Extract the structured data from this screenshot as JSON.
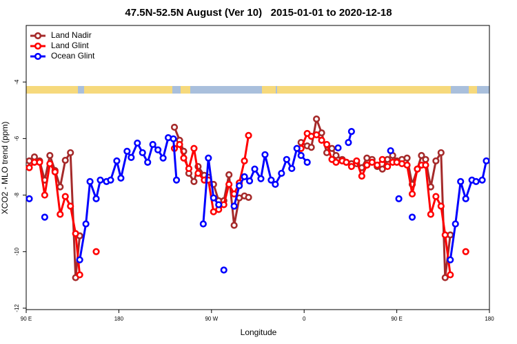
{
  "chart_data": {
    "type": "line",
    "title": "47.5N-52.5N August (Ver 10)   2015-01-01 to 2020-12-18",
    "x_label": "Longitude",
    "y_label": "XCO2 - MLO trend (ppm)",
    "xlim": [
      90,
      540
    ],
    "xticks": [
      {
        "value": 90,
        "label": "90 E"
      },
      180,
      {
        "value": 270,
        "label": "90 W"
      },
      {
        "value": 360,
        "label": "0"
      },
      {
        "value": 450,
        "label": "90 E"
      },
      {
        "value": 540,
        "label": "180"
      }
    ],
    "ylim": [
      -12.05,
      -2
    ],
    "yticks": [
      -12,
      -10,
      -8,
      -6,
      -4
    ],
    "legend": "top-left",
    "series": [
      {
        "name": "Land Nadir",
        "color": "#a52a2a",
        "x": [
          93,
          98,
          103,
          108,
          113,
          118,
          123,
          128,
          133,
          138,
          142,
          null,
          234,
          239,
          243,
          248,
          253,
          257,
          263,
          267,
          272,
          277,
          282,
          287,
          292,
          297,
          302,
          306,
          null,
          357,
          363,
          367,
          372,
          377,
          382,
          387,
          391,
          397,
          401,
          406,
          411,
          416,
          421,
          426,
          431,
          436,
          441,
          446,
          450,
          455,
          460,
          465,
          470,
          474,
          478,
          483,
          488,
          493,
          497,
          502
        ],
        "values": [
          -6.79,
          -6.65,
          -6.79,
          -7.47,
          -6.6,
          -7.13,
          -7.71,
          -6.77,
          -6.5,
          -10.92,
          -9.44,
          null,
          -5.6,
          -6.06,
          -6.45,
          -7.23,
          -7.52,
          -6.99,
          -7.3,
          -7.37,
          -7.62,
          -8.2,
          -8.2,
          -7.28,
          -9.07,
          -8.1,
          -8.03,
          -8.08,
          null,
          -6.14,
          -6.26,
          -6.31,
          -5.31,
          -5.8,
          -6.5,
          -6.35,
          -6.6,
          -6.74,
          -6.84,
          -6.89,
          -6.89,
          -7.03,
          -6.69,
          -6.74,
          -6.99,
          -7.08,
          -6.74,
          -6.6,
          -6.79,
          -6.74,
          -6.69,
          -7.62,
          -7.08,
          -6.6,
          -6.74,
          -7.71,
          -6.79,
          -6.5,
          -10.92,
          -9.41
        ]
      },
      {
        "name": "Land Glint",
        "color": "#ff0000",
        "x": [
          93,
          98,
          103,
          108,
          113,
          118,
          123,
          128,
          133,
          138,
          142,
          null,
          158,
          null,
          234,
          239,
          243,
          248,
          253,
          257,
          263,
          267,
          272,
          277,
          282,
          287,
          292,
          297,
          302,
          306,
          null,
          357,
          363,
          367,
          372,
          377,
          382,
          387,
          391,
          397,
          401,
          406,
          411,
          416,
          421,
          426,
          431,
          436,
          441,
          446,
          450,
          455,
          460,
          465,
          470,
          474,
          478,
          483,
          488,
          493,
          497,
          502,
          null,
          517
        ],
        "values": [
          -7.03,
          -6.84,
          -6.84,
          -8.0,
          -6.89,
          -7.18,
          -8.68,
          -8.05,
          -8.39,
          -9.36,
          -10.82,
          null,
          -10.0,
          null,
          -6.35,
          -6.21,
          -6.69,
          -7.06,
          -6.35,
          -7.23,
          -7.47,
          -7.47,
          -8.59,
          -8.51,
          -8.34,
          -7.62,
          -7.96,
          -7.57,
          -6.79,
          -5.89,
          null,
          -6.35,
          -5.82,
          -5.92,
          -5.87,
          -6.06,
          -6.21,
          -6.74,
          -6.84,
          -6.79,
          -6.84,
          -6.99,
          -6.79,
          -7.33,
          -6.94,
          -6.84,
          -6.94,
          -6.74,
          -6.99,
          -6.84,
          -6.84,
          -6.89,
          -6.94,
          -7.96,
          -7.08,
          -6.94,
          -6.94,
          -8.68,
          -8.05,
          -8.39,
          -9.41,
          -10.82,
          null,
          -10.0
        ]
      },
      {
        "name": "Ocean Glint",
        "color": "#0000ff",
        "x": [
          93,
          null,
          108,
          null,
          142,
          148,
          152,
          158,
          162,
          168,
          172,
          178,
          182,
          188,
          192,
          198,
          203,
          208,
          213,
          218,
          223,
          228,
          233,
          236,
          null,
          262,
          267,
          272,
          277,
          null,
          282,
          null,
          292,
          297,
          302,
          307,
          312,
          318,
          322,
          328,
          332,
          338,
          343,
          348,
          353,
          357,
          363,
          null,
          393,
          null,
          403,
          406,
          null,
          444,
          null,
          452,
          null,
          465,
          null,
          502,
          507,
          512,
          517,
          523,
          527,
          533,
          537
        ],
        "values": [
          -8.13,
          null,
          -8.78,
          null,
          -10.29,
          -9.02,
          -7.52,
          -8.13,
          -7.47,
          -7.52,
          -7.47,
          -6.79,
          -7.4,
          -6.45,
          -6.67,
          -6.16,
          -6.5,
          -6.84,
          -6.21,
          -6.4,
          -6.69,
          -5.97,
          -6.01,
          -7.47,
          null,
          -9.02,
          -6.69,
          -8.1,
          -8.34,
          null,
          -10.65,
          null,
          -8.39,
          -7.67,
          -7.35,
          -7.5,
          -7.08,
          -7.42,
          -6.57,
          -7.47,
          -7.62,
          -7.23,
          -6.74,
          -7.06,
          -6.35,
          -6.6,
          -6.84,
          null,
          -6.33,
          null,
          -6.14,
          -5.75,
          null,
          -6.43,
          null,
          -8.13,
          null,
          -8.78,
          null,
          -10.29,
          -9.02,
          -7.52,
          -8.13,
          -7.47,
          -7.52,
          -7.47,
          -6.79
        ]
      }
    ]
  }
}
